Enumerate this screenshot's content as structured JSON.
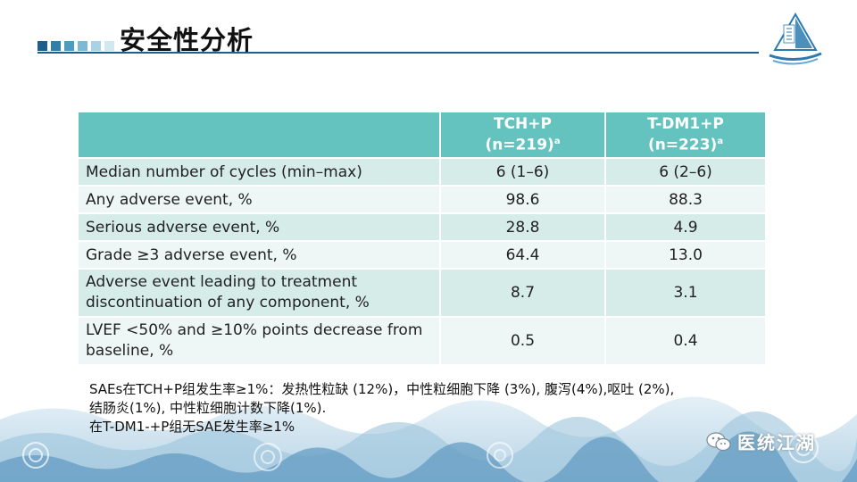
{
  "slide": {
    "title": "安全性分析"
  },
  "colors": {
    "header_teal": "#64c2bf",
    "row_dark": "#d6ece9",
    "row_light": "#eef7f5",
    "title_line": "#1f5f8b"
  },
  "table": {
    "columns": [
      {
        "name": "TCH+P",
        "n": "(n=219)",
        "sup": "a"
      },
      {
        "name": "T-DM1+P",
        "n": "(n=223)",
        "sup": "a"
      }
    ],
    "rows": [
      {
        "label": "Median number of cycles (min–max)",
        "tchp": "6 (1–6)",
        "tdm1p": "6 (2–6)"
      },
      {
        "label": "Any adverse event, %",
        "tchp": "98.6",
        "tdm1p": "88.3"
      },
      {
        "label": "Serious adverse event, %",
        "tchp": "28.8",
        "tdm1p": "4.9"
      },
      {
        "label": "Grade ≥3 adverse event, %",
        "tchp": "64.4",
        "tdm1p": "13.0"
      },
      {
        "label_line1": "Adverse event leading to treatment",
        "label_line2": "discontinuation of any component, %",
        "tchp": "8.7",
        "tdm1p": "3.1"
      },
      {
        "label_line1": "LVEF <50% and ≥10% points decrease from",
        "label_line2": "baseline, %",
        "tchp": "0.5",
        "tdm1p": "0.4"
      }
    ]
  },
  "notes": {
    "line1": "SAEs在TCH+P组发生率≥1%：发热性粒缺 (12%)，中性粒细胞下降 (3%), 腹泻(4%),呕吐 (2%),",
    "line2": "结肠炎(1%), 中性粒细胞计数下降(1%).",
    "line3": "在T-DM1-+P组无SAE发生率≥1%"
  },
  "brand": {
    "name": "医统江湖",
    "icon": "wechat-icon"
  },
  "logo": {
    "icon": "sailboat-logo-icon"
  }
}
